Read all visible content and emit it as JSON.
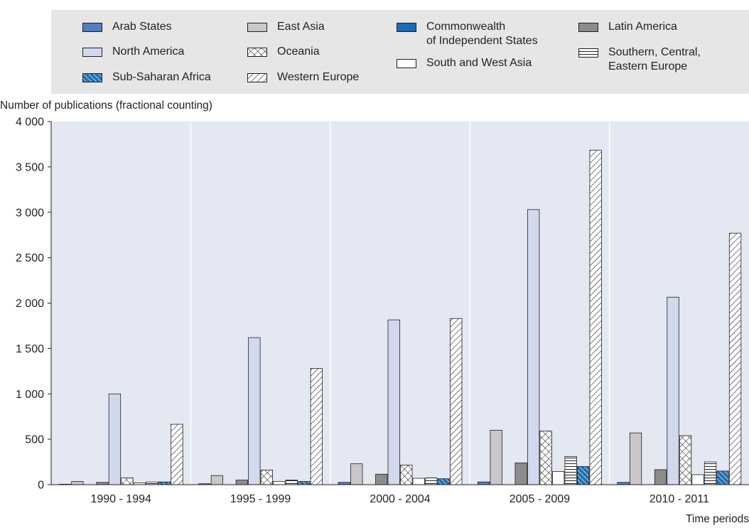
{
  "chart_data": {
    "type": "bar",
    "ylabel": "Number of publications (fractional counting)",
    "xlabel": "Time periods",
    "ylim": [
      0,
      4000
    ],
    "yticks": [
      0,
      500,
      1000,
      1500,
      2000,
      2500,
      3000,
      3500,
      4000
    ],
    "ytick_labels": [
      "0",
      "500",
      "1 000",
      "1 500",
      "2 000",
      "2 500",
      "3 000",
      "3 500",
      "4 000"
    ],
    "categories": [
      "1990 - 1994",
      "1995 - 1999",
      "2000 - 2004",
      "2005 - 2009",
      "2010 - 2011"
    ],
    "grid": "vertical separators between periods",
    "legend_position": "top",
    "series": [
      {
        "name": "Arab States",
        "values": [
          5,
          10,
          25,
          30,
          25
        ],
        "fill": "#4f7fc4",
        "pattern": "solid"
      },
      {
        "name": "East Asia",
        "values": [
          35,
          100,
          230,
          600,
          570
        ],
        "fill": "#c8c8c8",
        "pattern": "solid"
      },
      {
        "name": "Commonwealth of Independent States",
        "values": [
          0,
          0,
          0,
          0,
          0
        ],
        "fill": "#1a6bb5",
        "pattern": "solid"
      },
      {
        "name": "Latin America",
        "values": [
          25,
          50,
          115,
          240,
          165
        ],
        "fill": "#8c8c8c",
        "pattern": "solid"
      },
      {
        "name": "North America",
        "values": [
          1000,
          1620,
          1815,
          3030,
          2065
        ],
        "fill": "#d1d9ee",
        "pattern": "solid"
      },
      {
        "name": "Oceania",
        "values": [
          75,
          160,
          215,
          590,
          540
        ],
        "fill": "#ffffff",
        "pattern": "crosshatch"
      },
      {
        "name": "South and West Asia",
        "values": [
          20,
          35,
          70,
          145,
          110
        ],
        "fill": "#ffffff",
        "pattern": "solid"
      },
      {
        "name": "Southern, Central, Eastern Europe",
        "values": [
          30,
          50,
          75,
          310,
          250
        ],
        "fill": "#ffffff",
        "pattern": "horizontal"
      },
      {
        "name": "Sub-Saharan Africa",
        "values": [
          30,
          35,
          65,
          200,
          150
        ],
        "fill": "#1f6fb0",
        "pattern": "diagonal-light"
      },
      {
        "name": "Western Europe",
        "values": [
          665,
          1280,
          1830,
          3685,
          2770
        ],
        "fill": "#ffffff",
        "pattern": "diagonal"
      }
    ]
  },
  "legend": [
    {
      "label": "Arab States"
    },
    {
      "label": "North America"
    },
    {
      "label": "Sub-Saharan Africa"
    },
    {
      "label": "East Asia"
    },
    {
      "label": "Oceania"
    },
    {
      "label": "Western Europe"
    },
    {
      "label": "Commonwealth\nof Independent States"
    },
    {
      "label": "South and West Asia"
    },
    {
      "label": "Latin America"
    },
    {
      "label": "Southern, Central,\nEastern Europe"
    }
  ]
}
